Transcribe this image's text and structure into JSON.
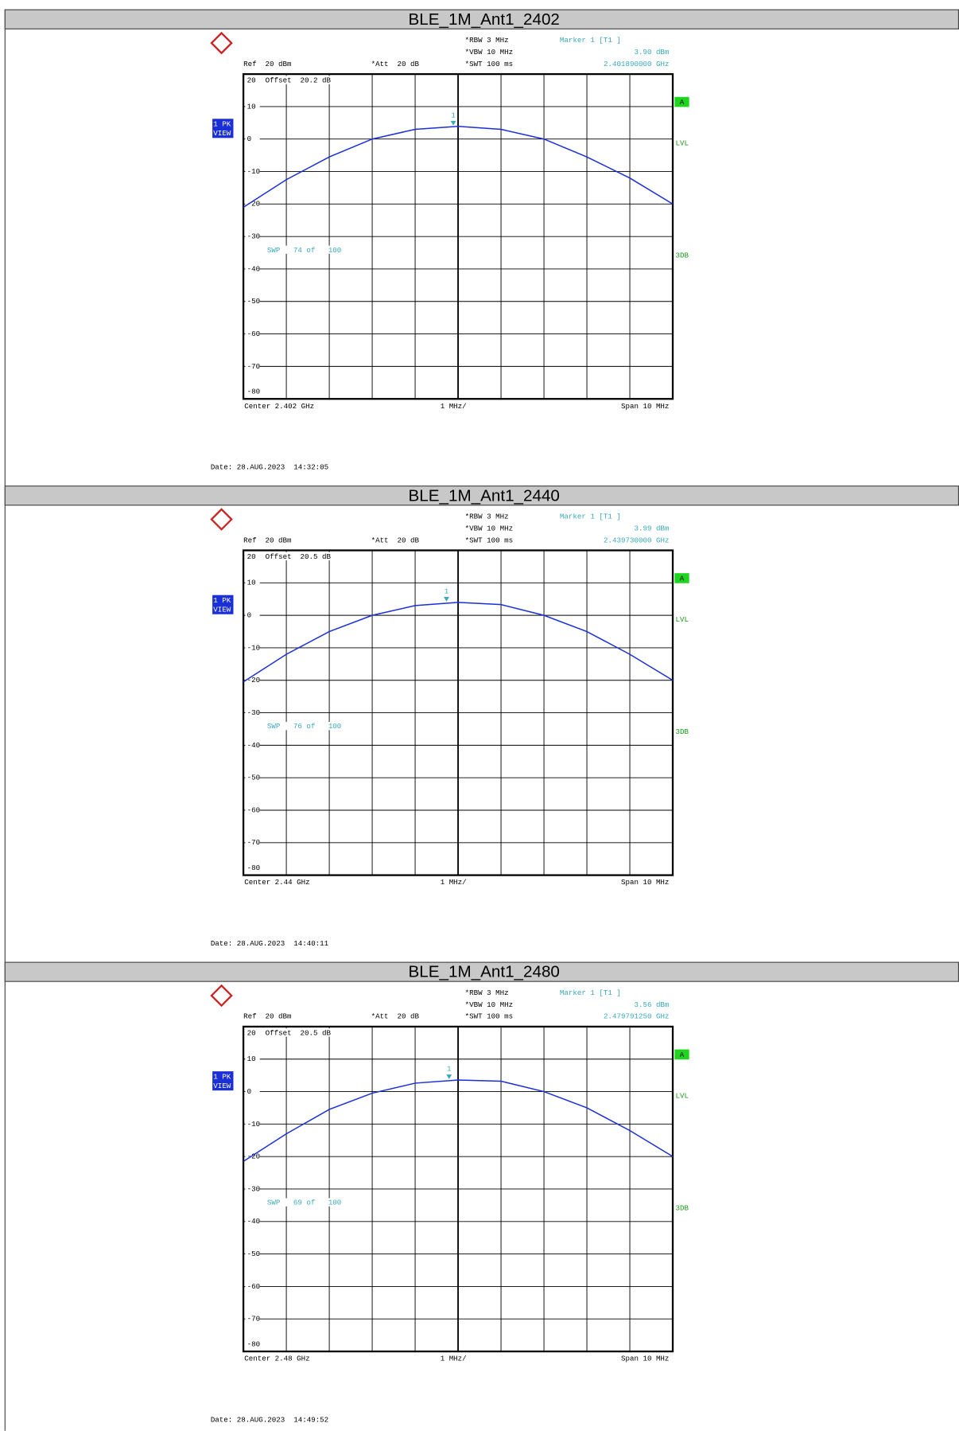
{
  "chart_data": [
    {
      "type": "line",
      "title": "BLE_1M_Ant1_2402",
      "x": [
        2.397,
        2.398,
        2.399,
        2.4,
        2.401,
        2.402,
        2.403,
        2.404,
        2.405,
        2.406,
        2.407
      ],
      "values": [
        -21,
        -12.5,
        -5.5,
        0,
        3,
        3.9,
        3,
        0,
        -5.5,
        -12,
        -20
      ],
      "color": "#1a2fd6",
      "xlim": [
        2.397,
        2.407
      ],
      "xticks": [
        2.397,
        2.398,
        2.399,
        2.4,
        2.401,
        2.402,
        2.403,
        2.404,
        2.405,
        2.406,
        2.407
      ],
      "ylim": [
        -80,
        20
      ],
      "yticks": [
        20,
        10,
        0,
        -10,
        -20,
        -30,
        -40,
        -50,
        -60,
        -70,
        -80
      ],
      "grid": true,
      "marker": {
        "label": "1",
        "x": 2.40189,
        "value": 3.9,
        "name": "Marker 1 [T1 ]",
        "value_label": "3.90 dBm",
        "x_label": "2.401890000 GHz"
      },
      "rbw": "*RBW 3 MHz",
      "vbw": "*VBW 10 MHz",
      "swt": "*SWT 100 ms",
      "ref": "Ref  20 dBm",
      "att": "*Att  20 dB",
      "offset": "Offset  20.2 dB",
      "trace": "1 PK",
      "view": "VIEW",
      "a": "A",
      "lvl": "LVL",
      "db3": "3DB",
      "sweep": "SWP   74 of   100",
      "center": "Center 2.402 GHz",
      "div": "1 MHz/",
      "span": "Span 10 MHz",
      "date": "Date: 28.AUG.2023  14:32:05"
    },
    {
      "type": "line",
      "title": "BLE_1M_Ant1_2440",
      "x": [
        2.435,
        2.436,
        2.437,
        2.438,
        2.439,
        2.44,
        2.441,
        2.442,
        2.443,
        2.444,
        2.445
      ],
      "values": [
        -20.5,
        -12,
        -5,
        0,
        3,
        3.99,
        3.3,
        0,
        -5,
        -12,
        -20
      ],
      "color": "#1a2fd6",
      "xlim": [
        2.435,
        2.445
      ],
      "xticks": [
        2.435,
        2.436,
        2.437,
        2.438,
        2.439,
        2.44,
        2.441,
        2.442,
        2.443,
        2.444,
        2.445
      ],
      "ylim": [
        -80,
        20
      ],
      "yticks": [
        20,
        10,
        0,
        -10,
        -20,
        -30,
        -40,
        -50,
        -60,
        -70,
        -80
      ],
      "grid": true,
      "marker": {
        "label": "1",
        "x": 2.43973,
        "value": 3.99,
        "name": "Marker 1 [T1 ]",
        "value_label": "3.99 dBm",
        "x_label": "2.439730000 GHz"
      },
      "rbw": "*RBW 3 MHz",
      "vbw": "*VBW 10 MHz",
      "swt": "*SWT 100 ms",
      "ref": "Ref  20 dBm",
      "att": "*Att  20 dB",
      "offset": "Offset  20.5 dB",
      "trace": "1 PK",
      "view": "VIEW",
      "a": "A",
      "lvl": "LVL",
      "db3": "3DB",
      "sweep": "SWP   76 of   100",
      "center": "Center 2.44 GHz",
      "div": "1 MHz/",
      "span": "Span 10 MHz",
      "date": "Date: 28.AUG.2023  14:40:11"
    },
    {
      "type": "line",
      "title": "BLE_1M_Ant1_2480",
      "x": [
        2.475,
        2.476,
        2.477,
        2.478,
        2.479,
        2.48,
        2.481,
        2.482,
        2.483,
        2.484,
        2.485
      ],
      "values": [
        -21.5,
        -13,
        -5.5,
        -0.5,
        2.6,
        3.56,
        3.2,
        0,
        -5,
        -12,
        -20
      ],
      "color": "#1a2fd6",
      "xlim": [
        2.475,
        2.485
      ],
      "xticks": [
        2.475,
        2.476,
        2.477,
        2.478,
        2.479,
        2.48,
        2.481,
        2.482,
        2.483,
        2.484,
        2.485
      ],
      "ylim": [
        -80,
        20
      ],
      "yticks": [
        20,
        10,
        0,
        -10,
        -20,
        -30,
        -40,
        -50,
        -60,
        -70,
        -80
      ],
      "grid": true,
      "marker": {
        "label": "1",
        "x": 2.47979125,
        "value": 3.56,
        "name": "Marker 1 [T1 ]",
        "value_label": "3.56 dBm",
        "x_label": "2.479791250 GHz"
      },
      "rbw": "*RBW 3 MHz",
      "vbw": "*VBW 10 MHz",
      "swt": "*SWT 100 ms",
      "ref": "Ref  20 dBm",
      "att": "*Att  20 dB",
      "offset": "Offset  20.5 dB",
      "trace": "1 PK",
      "view": "VIEW",
      "a": "A",
      "lvl": "LVL",
      "db3": "3DB",
      "sweep": "SWP   69 of   100",
      "center": "Center 2.48 GHz",
      "div": "1 MHz/",
      "span": "Span 10 MHz",
      "date": "Date: 28.AUG.2023  14:49:52"
    }
  ]
}
